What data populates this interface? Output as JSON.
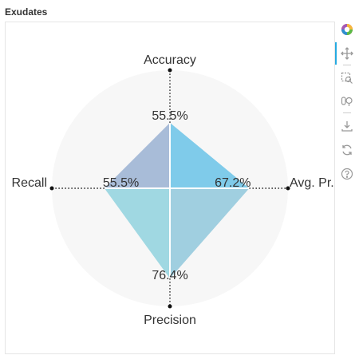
{
  "page": {
    "title": "Exudates"
  },
  "chart_data": {
    "type": "radar",
    "title": "Exudates",
    "axes": [
      "Accuracy",
      "Avg. Pr.",
      "Precision",
      "Recall"
    ],
    "values": [
      55.5,
      67.2,
      76.4,
      55.5
    ],
    "value_labels": [
      "55.5%",
      "67.2%",
      "76.4%",
      "55.5%"
    ],
    "range": [
      0,
      100
    ],
    "segment_colors": [
      "#7fcbea",
      "#a0cfe0",
      "#a0d8e2",
      "#a8bcd8"
    ],
    "background_color": "#f7f7f7"
  },
  "toolbar": {
    "tools": [
      {
        "name": "bokeh-logo-icon"
      },
      {
        "name": "pan-icon"
      },
      {
        "name": "box-zoom-icon"
      },
      {
        "name": "wheel-zoom-icon"
      },
      {
        "name": "save-icon"
      },
      {
        "name": "reset-icon"
      },
      {
        "name": "help-icon"
      }
    ]
  }
}
